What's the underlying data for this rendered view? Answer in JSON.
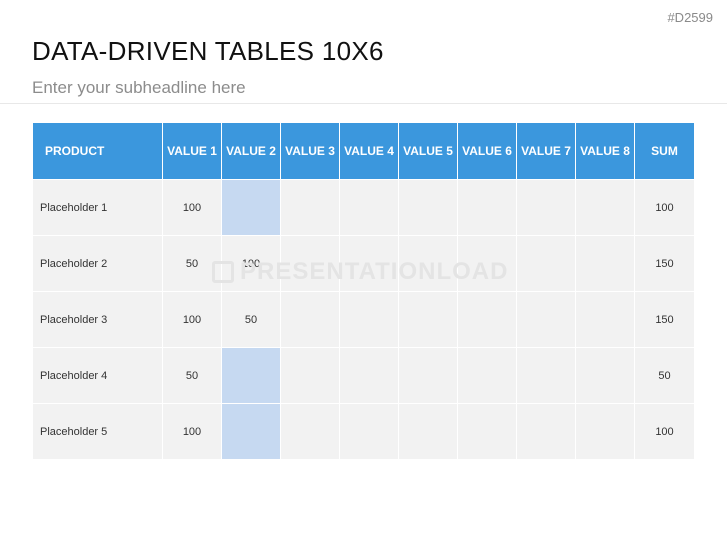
{
  "slide_id": "#D2599",
  "title": "DATA-DRIVEN TABLES 10X6",
  "subtitle": "Enter your subheadline here",
  "watermark": "PRESENTATIONLOAD",
  "colors": {
    "header": "#3b97dd",
    "cell": "#f2f2f2",
    "highlight": "#c6d9f1"
  },
  "table": {
    "headers": [
      "PRODUCT",
      "VALUE 1",
      "VALUE 2",
      "VALUE 3",
      "VALUE 4",
      "VALUE 5",
      "VALUE 6",
      "VALUE 7",
      "VALUE 8",
      "SUM"
    ],
    "rows": [
      [
        "Placeholder 1",
        "100",
        "",
        "",
        "",
        "",
        "",
        "",
        "",
        "100"
      ],
      [
        "Placeholder 2",
        "50",
        "100",
        "",
        "",
        "",
        "",
        "",
        "",
        "150"
      ],
      [
        "Placeholder 3",
        "100",
        "50",
        "",
        "",
        "",
        "",
        "",
        "",
        "150"
      ],
      [
        "Placeholder 4",
        "50",
        "",
        "",
        "",
        "",
        "",
        "",
        "",
        "50"
      ],
      [
        "Placeholder 5",
        "100",
        "",
        "",
        "",
        "",
        "",
        "",
        "",
        "100"
      ]
    ]
  }
}
